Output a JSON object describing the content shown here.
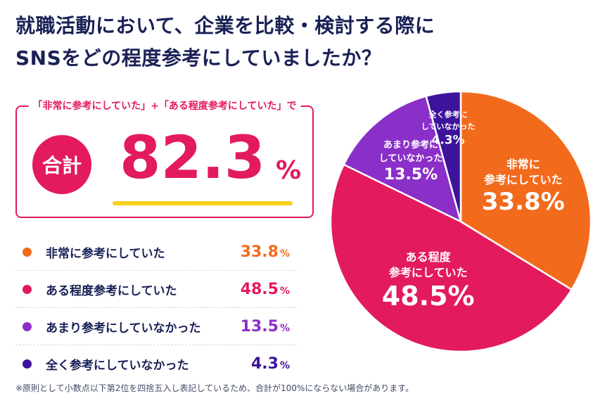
{
  "title": {
    "line1": "就職活動において、企業を比較・検討する際に",
    "line2": "SNSをどの程度参考にしていましたか？"
  },
  "total": {
    "caption": "「非常に参考にしていた」+「ある程度参考にしていた」で",
    "badge": "合計",
    "value": "82.3",
    "unit": "%"
  },
  "colors": {
    "orange": "#f26b1d",
    "pink": "#e31a5c",
    "purple": "#8b2fc9",
    "indigo": "#3c139a",
    "accent_yellow": "#f7d11e"
  },
  "legend": [
    {
      "label": "非常に参考にしていた",
      "value": "33.8",
      "unit": "%",
      "color": "#f26b1d"
    },
    {
      "label": "ある程度参考にしていた",
      "value": "48.5",
      "unit": "%",
      "color": "#e31a5c"
    },
    {
      "label": "あまり参考にしていなかった",
      "value": "13.5",
      "unit": "%",
      "color": "#8b2fc9"
    },
    {
      "label": "全く参考にしていなかった",
      "value": "4.3",
      "unit": "%",
      "color": "#3c139a"
    }
  ],
  "chart_data": {
    "type": "pie",
    "title": "就職活動において、企業を比較・検討する際にSNSをどの程度参考にしていましたか？",
    "slices": [
      {
        "label": "非常に参考にしていた",
        "display_label": [
          "非常に",
          "参考にしていた"
        ],
        "value": 33.8,
        "value_text": "33.8%",
        "color": "#f26b1d"
      },
      {
        "label": "ある程度参考にしていた",
        "display_label": [
          "ある程度",
          "参考にしていた"
        ],
        "value": 48.5,
        "value_text": "48.5%",
        "color": "#e31a5c"
      },
      {
        "label": "あまり参考にしていなかった",
        "display_label": [
          "あまり参考に",
          "していなかった"
        ],
        "value": 13.5,
        "value_text": "13.5%",
        "color": "#8b2fc9"
      },
      {
        "label": "全く参考にしていなかった",
        "display_label": [
          "全く参考に",
          "していなかった"
        ],
        "value": 4.3,
        "value_text": "4.3%",
        "color": "#3c139a"
      }
    ],
    "start_angle": "12 o'clock",
    "direction": "clockwise",
    "legend_position": "left"
  },
  "footnote": "※原則として小数点以下第2位を四捨五入し表記しているため、合計が100%にならない場合があります。"
}
